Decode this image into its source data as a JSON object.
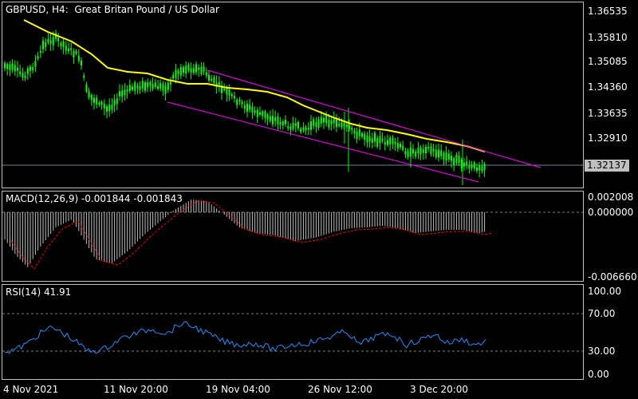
{
  "main": {
    "title": "GBPUSD, H4:  Great Britan Pound / US Dollar",
    "price_labels": [
      "1.36535",
      "1.35810",
      "1.35085",
      "1.34360",
      "1.33635",
      "1.32910"
    ],
    "current_price": "1.32137",
    "colors": {
      "candle": "#00ff00",
      "ma": "#ffff00",
      "channel": "#ff00ff",
      "price_line": "#708090"
    }
  },
  "macd": {
    "title": "MACD(12,26,9) -0.001844 -0.001843",
    "labels": [
      "0.002008",
      "0.000000",
      "-0.006660"
    ],
    "colors": {
      "histogram": "#c0c0c0",
      "signal": "#ff0000"
    }
  },
  "rsi": {
    "title": "RSI(14) 41.91",
    "labels": [
      "100.00",
      "70.00",
      "30.00",
      "0.00"
    ],
    "colors": {
      "line": "#1e90ff"
    }
  },
  "time_axis": [
    "4 Nov 2021",
    "11 Nov 20:00",
    "19 Nov 04:00",
    "26 Nov 12:00",
    "3 Dec 20:00"
  ]
}
